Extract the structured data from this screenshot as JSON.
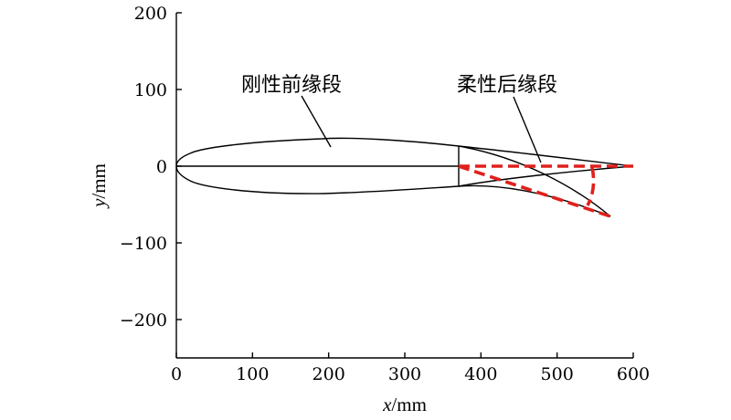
{
  "axes": {
    "x_ticks": [
      "0",
      "100",
      "200",
      "300",
      "400",
      "500",
      "600"
    ],
    "y_ticks": [
      "200",
      "100",
      "0",
      "−100",
      "−200"
    ],
    "x_title_var": "x",
    "x_title_unit": "/mm",
    "y_title_var": "y",
    "y_title_unit": "/mm",
    "xlim": [
      0,
      600
    ],
    "ylim": [
      -250,
      200
    ]
  },
  "annotations": {
    "rigid_leading": "刚性前缘段",
    "flexible_trailing": "柔性后缘段"
  },
  "geometry_mm": {
    "chord": 600,
    "hinge_x": 370,
    "deflected_te": [
      570,
      -67
    ],
    "max_thickness_x": 190,
    "max_half_thickness": 35
  },
  "colors": {
    "outline": "#000000",
    "deflection": "#e0201b"
  }
}
